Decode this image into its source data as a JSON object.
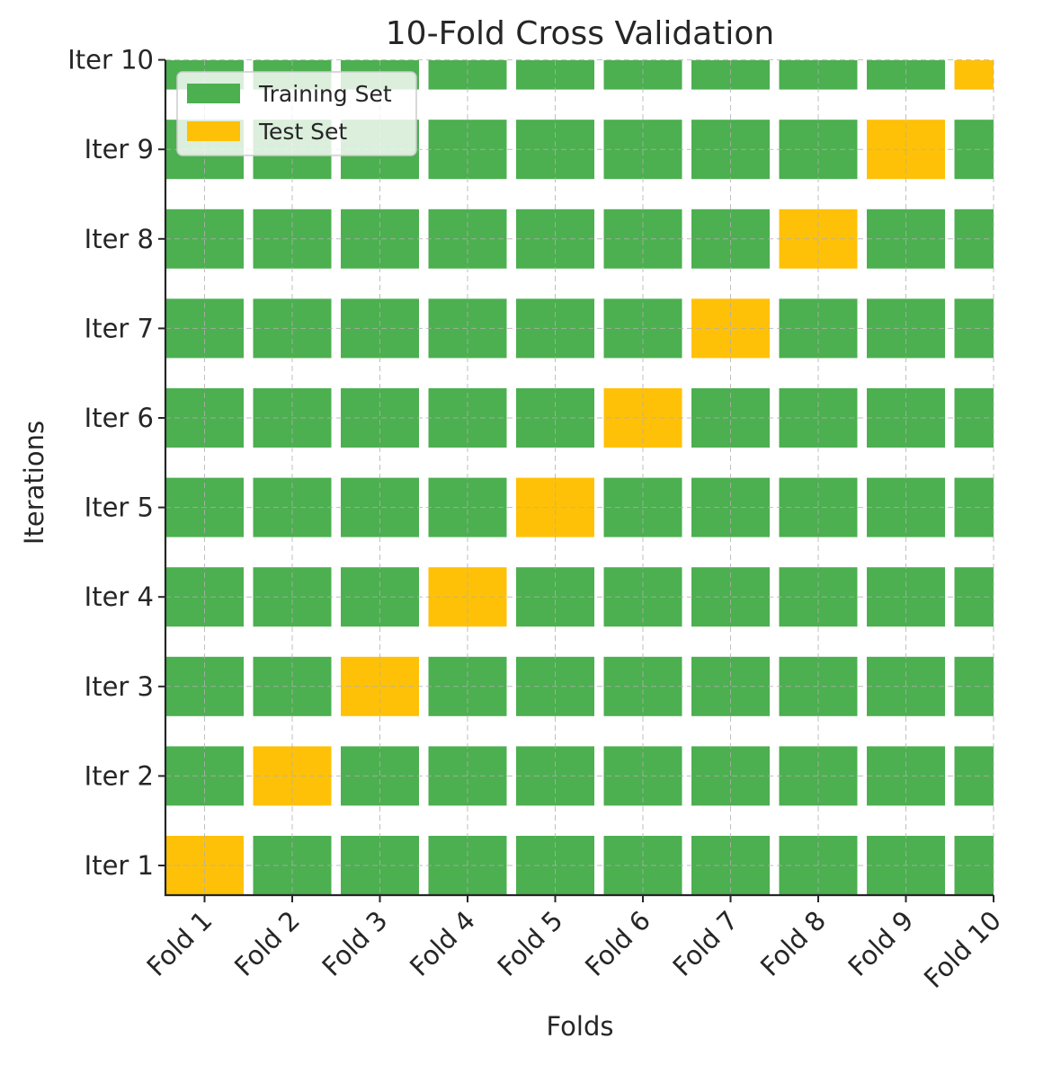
{
  "chart_data": {
    "type": "heatmap",
    "title": "10-Fold Cross Validation",
    "xlabel": "Folds",
    "ylabel": "Iterations",
    "x": [
      "Fold 1",
      "Fold 2",
      "Fold 3",
      "Fold 4",
      "Fold 5",
      "Fold 6",
      "Fold 7",
      "Fold 8",
      "Fold 9",
      "Fold 10"
    ],
    "y": [
      "Iter 1",
      "Iter 2",
      "Iter 3",
      "Iter 4",
      "Iter 5",
      "Iter 6",
      "Iter 7",
      "Iter 8",
      "Iter 9",
      "Iter 10"
    ],
    "test_fold_by_iteration": [
      1,
      2,
      3,
      4,
      5,
      6,
      7,
      8,
      9,
      10
    ],
    "legend": [
      {
        "label": "Training Set",
        "color": "#4caf50"
      },
      {
        "label": "Test Set",
        "color": "#ffc107"
      }
    ],
    "legend_position": "top-left",
    "grid": true,
    "grid_style": "dashed"
  }
}
